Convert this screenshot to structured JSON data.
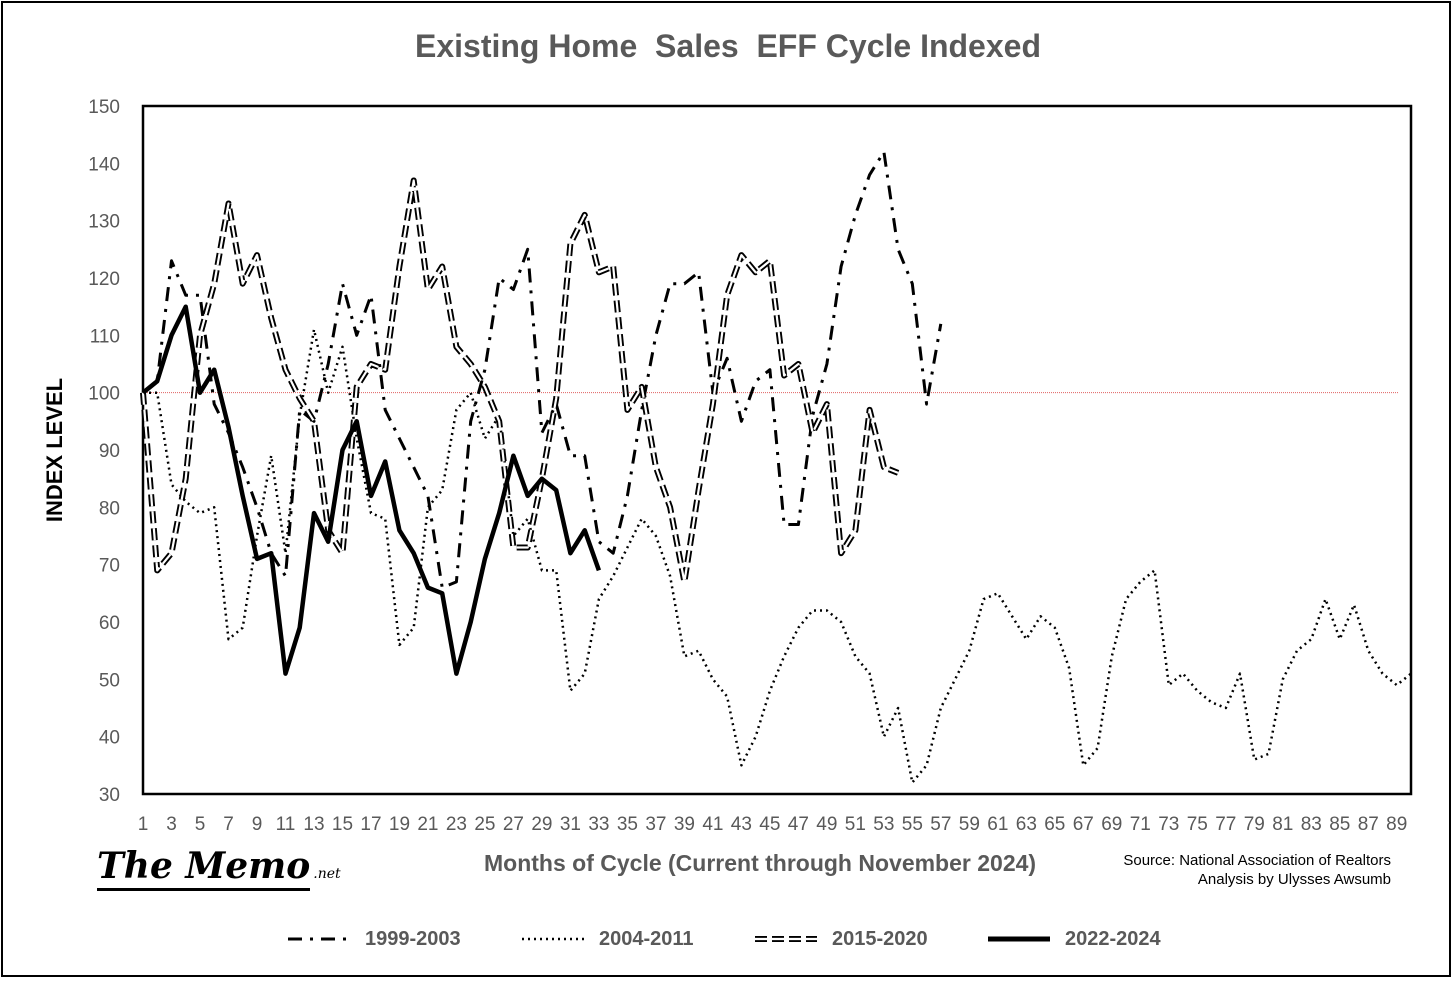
{
  "chart_data": {
    "type": "line",
    "title": "Existing Home  Sales  EFF Cycle Indexed",
    "xlabel": "Months of Cycle (Current through November 2024)",
    "ylabel": "INDEX LEVEL",
    "ylim": [
      30,
      150
    ],
    "yticks": [
      30,
      40,
      50,
      60,
      70,
      80,
      90,
      100,
      110,
      120,
      130,
      140,
      150
    ],
    "xlim": [
      1,
      90
    ],
    "xticks": [
      1,
      3,
      5,
      7,
      9,
      11,
      13,
      15,
      17,
      19,
      21,
      23,
      25,
      27,
      29,
      31,
      33,
      35,
      37,
      39,
      41,
      43,
      45,
      47,
      49,
      51,
      53,
      55,
      57,
      59,
      61,
      63,
      65,
      67,
      69,
      71,
      73,
      75,
      77,
      79,
      81,
      83,
      85,
      87,
      89
    ],
    "reference_line": 100,
    "legend_position": "bottom",
    "series": [
      {
        "name": "1999-2003",
        "style": "dash-dot",
        "values": [
          100,
          102,
          123,
          117,
          117,
          98,
          93,
          87,
          80,
          72,
          68,
          97,
          95,
          105,
          119,
          110,
          117,
          97,
          92,
          87,
          82,
          66,
          67,
          95,
          104,
          120,
          118,
          125,
          93,
          98,
          89,
          89,
          74,
          72,
          82,
          97,
          110,
          119,
          119,
          121,
          100,
          106,
          95,
          102,
          104,
          77,
          77,
          96,
          105,
          122,
          131,
          138,
          142,
          125,
          119,
          98,
          112
        ]
      },
      {
        "name": "2004-2011",
        "style": "dotted",
        "values": [
          100,
          100,
          84,
          81,
          79,
          80,
          57,
          59,
          75,
          89,
          72,
          96,
          111,
          100,
          108,
          92,
          79,
          78,
          56,
          59,
          80,
          83,
          97,
          100,
          92,
          96,
          75,
          78,
          69,
          69,
          48,
          51,
          64,
          68,
          73,
          78,
          75,
          68,
          54,
          55,
          50,
          47,
          35,
          40,
          48,
          54,
          59,
          62,
          62,
          60,
          54,
          51,
          40,
          45,
          32,
          35,
          45,
          50,
          55,
          64,
          65,
          61,
          57,
          61,
          59,
          52,
          35,
          38,
          54,
          64,
          67,
          69,
          49,
          51,
          48,
          46,
          45,
          51,
          36,
          37,
          50,
          55,
          57,
          64,
          57,
          63,
          55,
          51,
          49,
          51
        ]
      },
      {
        "name": "2015-2020",
        "style": "double-dash",
        "values": [
          100,
          69,
          72,
          85,
          110,
          119,
          133,
          119,
          124,
          113,
          104,
          99,
          95,
          76,
          72,
          101,
          105,
          104,
          122,
          137,
          118,
          122,
          108,
          105,
          101,
          95,
          73,
          73,
          85,
          99,
          126,
          131,
          121,
          122,
          97,
          101,
          87,
          80,
          67,
          83,
          98,
          117,
          124,
          121,
          123,
          103,
          105,
          93,
          98,
          72,
          76,
          97,
          87,
          86
        ]
      },
      {
        "name": "2022-2024",
        "style": "solid-thick",
        "values": [
          100,
          102,
          110,
          115,
          100,
          104,
          94,
          82,
          71,
          72,
          51,
          59,
          79,
          74,
          90,
          95,
          82,
          88,
          76,
          72,
          66,
          65,
          51,
          60,
          71,
          79,
          89,
          82,
          85,
          83,
          72,
          76,
          69
        ]
      }
    ]
  },
  "branding": {
    "logo_main": "The Memo",
    "logo_suffix": ".net"
  },
  "source": {
    "line1": "Source: National Association of Realtors",
    "line2": "Analysis by Ulysses Awsumb"
  }
}
